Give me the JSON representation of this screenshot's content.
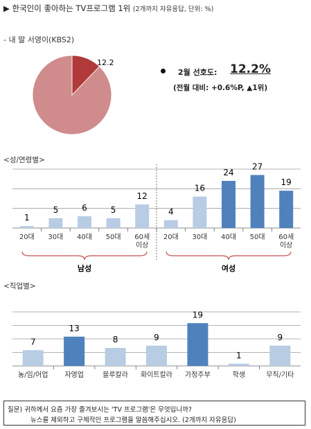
{
  "title": {
    "main": "▶ 한국인이 좋아하는 TV프로그램 1위",
    "sub": "(2개까지 자유응답, 단위: %)"
  },
  "program": "- 내 딸 서영이(KBS2)",
  "highlight": {
    "label": "2월 선호도:",
    "value": "12.2%",
    "change": "(전월 대비: +0.6%P, ▲1위)"
  },
  "sections": {
    "gender_age": "<성/연령별>",
    "occupation": "<직업별>"
  },
  "colors": {
    "pie_main": "#d08c8c",
    "pie_slice": "#b03a3a",
    "bar_light": "#b8cce4",
    "bar_dark": "#4f81bd",
    "brace": "#c0504d"
  },
  "chart_data": [
    {
      "type": "pie",
      "values": [
        12.2,
        87.8
      ],
      "data_labels": [
        "12.2",
        ""
      ]
    },
    {
      "type": "bar",
      "groups": [
        "남성",
        "여성"
      ],
      "categories": [
        "20대",
        "30대",
        "40대",
        "50대",
        "60세 이상",
        "20대",
        "30대",
        "40대",
        "50대",
        "60세 이상"
      ],
      "values": [
        1,
        5,
        6,
        5,
        12,
        4,
        16,
        24,
        27,
        19
      ],
      "highlighted": [
        false,
        false,
        false,
        false,
        false,
        false,
        false,
        true,
        true,
        true
      ],
      "ylim": [
        0,
        30
      ]
    },
    {
      "type": "bar",
      "categories": [
        "농/임/어업",
        "자영업",
        "블루칼라",
        "화이트칼라",
        "가정주부",
        "학생",
        "무직/기타"
      ],
      "values": [
        7,
        13,
        8,
        9,
        19,
        1,
        9
      ],
      "highlighted": [
        false,
        true,
        false,
        false,
        true,
        false,
        false
      ],
      "ylim": [
        0,
        24
      ]
    }
  ],
  "note": {
    "line1": "질문) 귀하께서 요즘 가장 즐겨보시는 'TV 프로그램'은 무엇입니까?",
    "line2": "뉴스를 제외하고 구체적인 프로그램을 말씀해주십시오. (2개까지 자유응답)"
  }
}
